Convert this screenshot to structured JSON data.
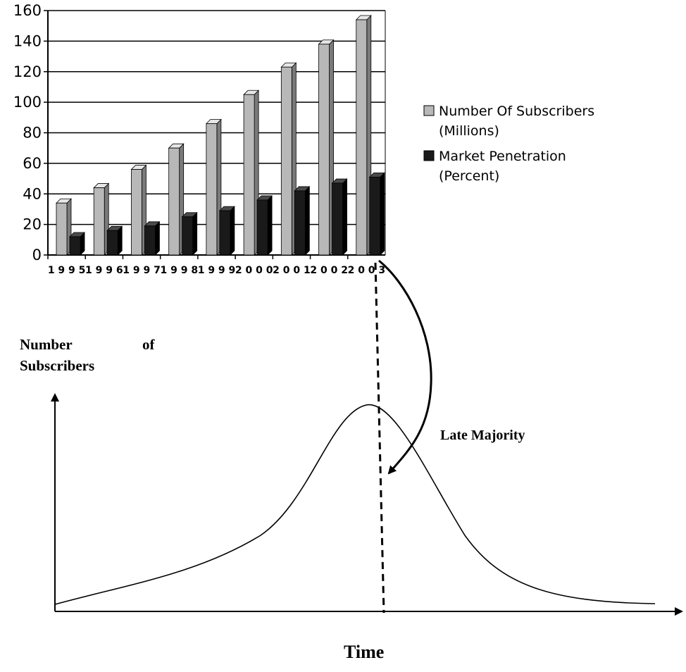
{
  "chart_data": [
    {
      "type": "bar",
      "bar_style": "3d",
      "categories": [
        "1995",
        "1996",
        "1997",
        "1998",
        "1999",
        "2000",
        "2001",
        "2002",
        "2003"
      ],
      "series": [
        {
          "name": "Number Of Subscribers",
          "name_unit": "(Millions)",
          "color": "#b8b8b8",
          "values": [
            34,
            44,
            56,
            70,
            86,
            105,
            123,
            138,
            154
          ]
        },
        {
          "name": "Market Penetration",
          "name_unit": "(Percent)",
          "color": "#1a1a1a",
          "values": [
            12,
            16,
            19,
            25,
            29,
            36,
            42,
            47,
            51
          ]
        }
      ],
      "yticks": [
        0,
        20,
        40,
        60,
        80,
        100,
        120,
        140,
        160
      ],
      "ylim": [
        0,
        160
      ],
      "grid": true,
      "legend_position": "right"
    },
    {
      "type": "line",
      "shape": "bell-curve",
      "ylabel": "Number of Subscribers",
      "ylabel_line1": "Number",
      "ylabel_line1b": "of",
      "ylabel_line2": "Subscribers",
      "xlabel": "Time",
      "annotation": "Late Majority"
    }
  ]
}
